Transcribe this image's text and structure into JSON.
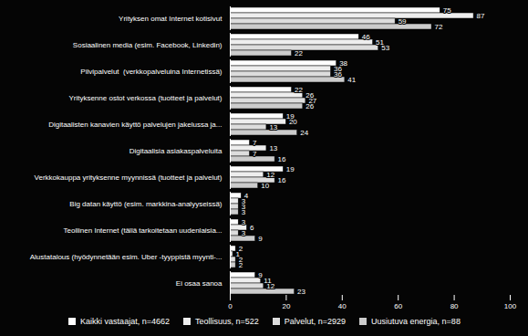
{
  "chart_data": {
    "type": "bar",
    "orientation": "horizontal",
    "data_labels": true,
    "categories": [
      "Yrityksen omat Internet kotisivut",
      "Sosiaalinen media (esim. Facebook, Linkedin)",
      "Pilvipalvelut  (verkkopalveluina Internetissä)",
      "Yrityksenne ostot verkossa (tuotteet ja palvelut)",
      "Digitaalisten kanavien käyttö palvelujen jakelussa ja...",
      "Digitaalisia asiakaspalveluita",
      "Verkkokauppa yrityksenne myynnissä (tuotteet ja palvelut)",
      "Big datan käyttö (esim. markkina-analyyseissä)",
      "Teollinen Internet (tällä tarkoitetaan uudenlaisia...",
      "Alustatalous (hyödynnetään esim. Uber -tyyppistä myynti-...",
      "Ei osaa sanoa"
    ],
    "series": [
      {
        "name": "Kaikki vastaajat, n=4662",
        "color": "#ffffff",
        "values": [
          75,
          46,
          38,
          22,
          19,
          7,
          19,
          4,
          3,
          2,
          9
        ]
      },
      {
        "name": "Teollisuus, n=522",
        "color": "#eeeeee",
        "values": [
          87,
          51,
          36,
          26,
          20,
          13,
          12,
          3,
          6,
          1,
          11
        ]
      },
      {
        "name": "Palvelut, n=2929",
        "color": "#dddddd",
        "values": [
          59,
          53,
          36,
          27,
          13,
          7,
          16,
          3,
          3,
          2,
          12
        ]
      },
      {
        "name": "Uusiutuva energia, n=88",
        "color": "#cccccc",
        "values": [
          72,
          22,
          41,
          26,
          24,
          16,
          10,
          3,
          9,
          2,
          23
        ]
      }
    ],
    "xlim": [
      0,
      100
    ],
    "xticks": [
      0,
      20,
      40,
      60,
      80,
      100
    ],
    "grid": false,
    "legend": "bottom"
  }
}
